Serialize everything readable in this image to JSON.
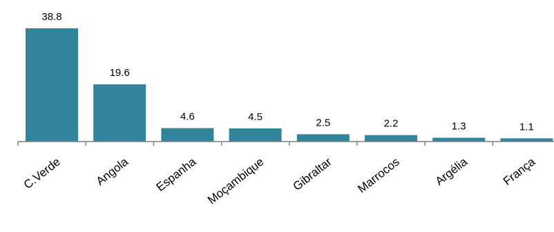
{
  "chart_data": {
    "type": "bar",
    "categories": [
      "C.Verde",
      "Angola",
      "Espanha",
      "Moçambique",
      "Gibraltar",
      "Marrocos",
      "Argélia",
      "França"
    ],
    "values": [
      38.8,
      19.6,
      4.6,
      4.5,
      2.5,
      2.2,
      1.3,
      1.1
    ],
    "title": "",
    "xlabel": "",
    "ylabel": "",
    "ylim": [
      0,
      38.8
    ],
    "grid": false,
    "legend": "none",
    "bar_color": "#31849b",
    "axis_color": "#7f7f7f"
  }
}
